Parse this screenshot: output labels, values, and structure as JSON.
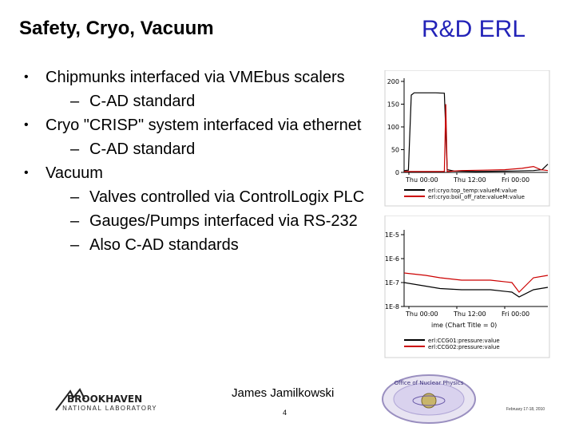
{
  "header": {
    "title": "Safety, Cryo, Vacuum",
    "brand": "R&D ERL",
    "brand_color": "#2323b8"
  },
  "bullets": [
    {
      "level": 1,
      "text": "Chipmunks interfaced via VMEbus scalers"
    },
    {
      "level": 2,
      "text": "C-AD standard"
    },
    {
      "level": 1,
      "text": "Cryo \"CRISP\" system interfaced via ethernet"
    },
    {
      "level": 2,
      "text": "C-AD standard"
    },
    {
      "level": 1,
      "text": "Vacuum"
    },
    {
      "level": 2,
      "text": "Valves controlled via ControlLogix PLC"
    },
    {
      "level": 2,
      "text": "Gauges/Pumps interfaced via RS-232"
    },
    {
      "level": 2,
      "text": "Also C-AD standards"
    }
  ],
  "footer": {
    "presenter": "James Jamilkowski",
    "page": "4",
    "date": "February 17-18, 2010",
    "lab_logo_line1": "BROOKHAVEN",
    "lab_logo_line2": "NATIONAL LABORATORY",
    "office_logo_text": "Office of Nuclear Physics"
  },
  "chart_data": [
    {
      "type": "line",
      "y_tick_labels": [
        "200",
        "150",
        "100",
        "50",
        "0"
      ],
      "x_tick_labels": [
        "Thu 00:00",
        "Thu 12:00",
        "Fri 00:00"
      ],
      "ylim": [
        0,
        200
      ],
      "legend_placement": "bottom",
      "series": [
        {
          "name": "erl:cryo:top_temp:valueM:value",
          "color": "#000000",
          "points": [
            [
              0,
              4
            ],
            [
              3,
              5
            ],
            [
              5,
              170
            ],
            [
              7,
              175
            ],
            [
              12,
              175
            ],
            [
              22,
              175
            ],
            [
              28,
              174
            ],
            [
              30,
              6
            ],
            [
              35,
              3
            ],
            [
              50,
              2
            ],
            [
              75,
              3
            ],
            [
              90,
              4
            ],
            [
              96,
              6
            ],
            [
              100,
              18
            ]
          ]
        },
        {
          "name": "erl:cryo:boil_off_rate:valueM:value",
          "color": "#cc0000",
          "points": [
            [
              0,
              2
            ],
            [
              28,
              2
            ],
            [
              29,
              150
            ],
            [
              30,
              2
            ],
            [
              40,
              4
            ],
            [
              55,
              5
            ],
            [
              70,
              6
            ],
            [
              82,
              9
            ],
            [
              90,
              13
            ],
            [
              95,
              6
            ],
            [
              100,
              4
            ]
          ]
        }
      ]
    },
    {
      "type": "line",
      "y_tick_labels": [
        "1E-5",
        "1E-6",
        "1E-7",
        "1E-8"
      ],
      "x_tick_labels": [
        "Thu 00:00",
        "Thu 12:00",
        "Fri 00:00"
      ],
      "x_axis_label": "ime (Chart Title = 0)",
      "log_scale": true,
      "legend_placement": "bottom",
      "series": [
        {
          "name": "erl:CCG01:pressure:value",
          "color": "#000000",
          "points": [
            [
              0,
              -7.0
            ],
            [
              15,
              -7.15
            ],
            [
              25,
              -7.25
            ],
            [
              40,
              -7.3
            ],
            [
              60,
              -7.3
            ],
            [
              75,
              -7.4
            ],
            [
              80,
              -7.6
            ],
            [
              90,
              -7.3
            ],
            [
              100,
              -7.2
            ]
          ]
        },
        {
          "name": "erl:CCG02:pressure:value",
          "color": "#cc0000",
          "points": [
            [
              0,
              -6.6
            ],
            [
              15,
              -6.7
            ],
            [
              25,
              -6.8
            ],
            [
              40,
              -6.9
            ],
            [
              60,
              -6.9
            ],
            [
              75,
              -7.0
            ],
            [
              80,
              -7.4
            ],
            [
              90,
              -6.8
            ],
            [
              100,
              -6.7
            ]
          ]
        }
      ]
    }
  ]
}
